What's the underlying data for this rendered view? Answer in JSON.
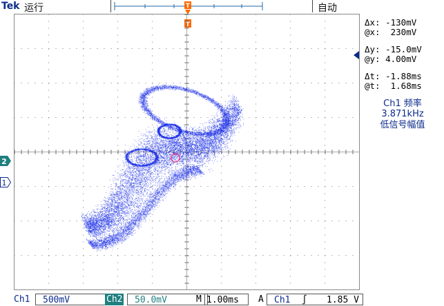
{
  "header": {
    "brand": "Tek",
    "run_state": "运行",
    "trigger_mode": "自动",
    "trigger_marker": "T"
  },
  "readouts": {
    "dx": "Δx: -130mV",
    "at_x": "@x:  230mV",
    "dy": "Δy: -15.0mV",
    "at_y": "@y: 4.00mV",
    "dt": "Δt: -1.88ms",
    "at_t": "@t:  1.68ms"
  },
  "frequency": {
    "line1": "Ch1 频率",
    "line2": "3.871kHz",
    "line3": "低信号幅值"
  },
  "markers": {
    "ch2": "2",
    "ch1": "1"
  },
  "status": {
    "ch1_label": "Ch1",
    "ch1_scale": "500mV",
    "ch2_label": "Ch2",
    "ch2_scale": "50.0mV",
    "time_label": "M",
    "time_scale": "1.00ms",
    "trigger_label": "A",
    "trigger_source": "Ch1",
    "trigger_slope": "∫",
    "trigger_level": "1.85 V"
  },
  "colors": {
    "trace": "#1a2ee6",
    "accent": "#ff6a00",
    "ch2": "#1f7f7f",
    "ch1": "#0a2a8c"
  }
}
